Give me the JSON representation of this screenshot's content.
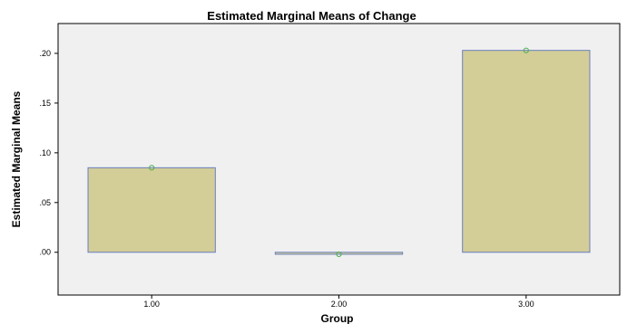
{
  "chart_data": {
    "type": "bar",
    "title": "Estimated Marginal Means of Change",
    "xlabel": "Group",
    "ylabel": "Estimated Marginal Means",
    "categories": [
      "1.00",
      "2.00",
      "3.00"
    ],
    "values": [
      0.085,
      -0.002,
      0.203
    ],
    "ylim": [
      -0.043,
      0.23
    ],
    "yticks": [
      0.0,
      0.05,
      0.1,
      0.15,
      0.2
    ],
    "ytick_labels": [
      ".00",
      ".05",
      ".10",
      ".15",
      ".20"
    ],
    "grid": false,
    "markers": "circle at each bar top",
    "colors": {
      "bar_fill": "#d3cd97",
      "bar_stroke": "#6a7fbf",
      "plot_background": "#f0f0f0",
      "marker": "#4cae4c"
    }
  }
}
